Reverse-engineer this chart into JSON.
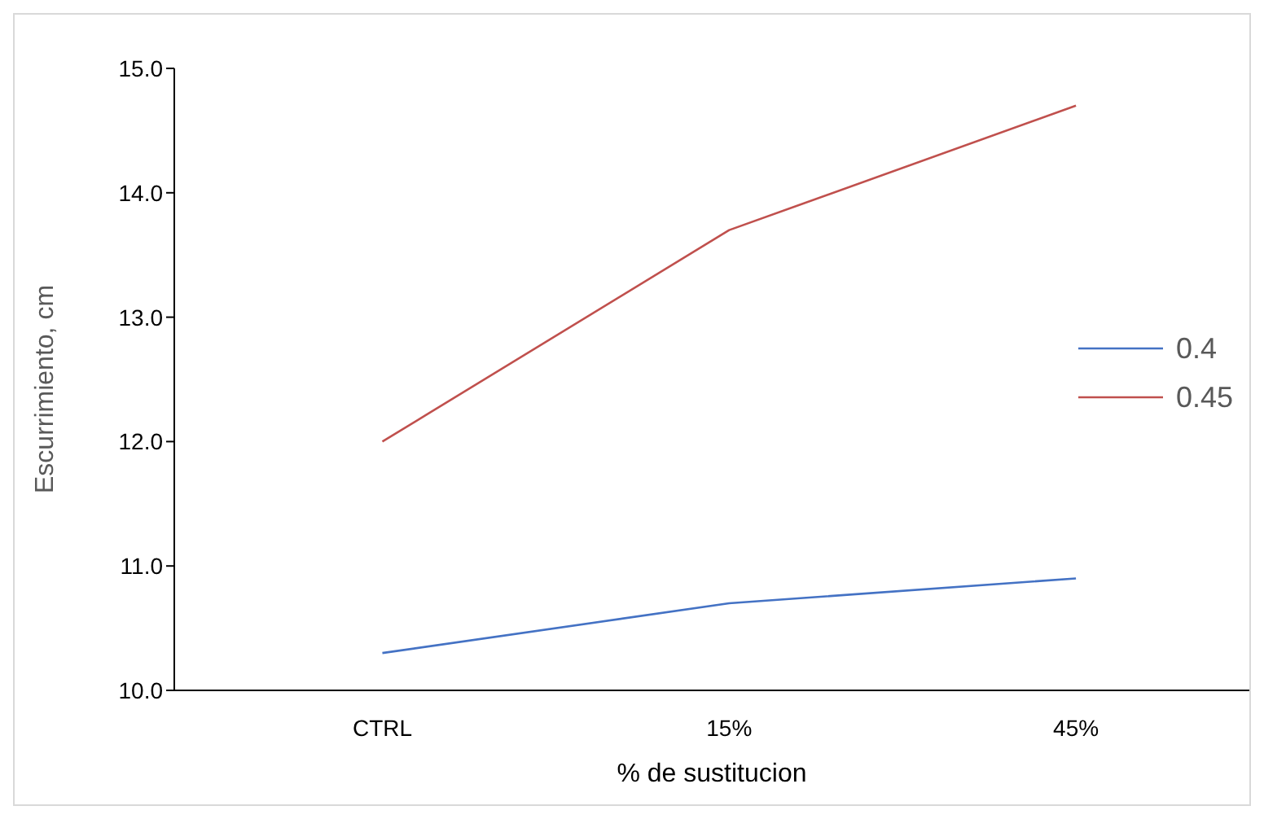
{
  "chart_data": {
    "type": "line",
    "xlabel": "% de sustitucion",
    "ylabel": "Escurrimiento, cm",
    "categories": [
      "CTRL",
      "15%",
      "45%"
    ],
    "series": [
      {
        "name": "0.4",
        "color": "#4472c4",
        "values": [
          10.3,
          10.7,
          10.9
        ]
      },
      {
        "name": "0.45",
        "color": "#c0504d",
        "values": [
          12.0,
          13.7,
          14.7
        ]
      }
    ],
    "ylim": [
      10,
      15
    ],
    "yticks": [
      {
        "value": 10,
        "label": "10.0"
      },
      {
        "value": 11,
        "label": "11.0"
      },
      {
        "value": 12,
        "label": "12.0"
      },
      {
        "value": 13,
        "label": "13.0"
      },
      {
        "value": 14,
        "label": "14.0"
      },
      {
        "value": 15,
        "label": "15.0"
      }
    ],
    "grid": false,
    "legend": "right",
    "marker": "none",
    "line_style": "solid"
  }
}
